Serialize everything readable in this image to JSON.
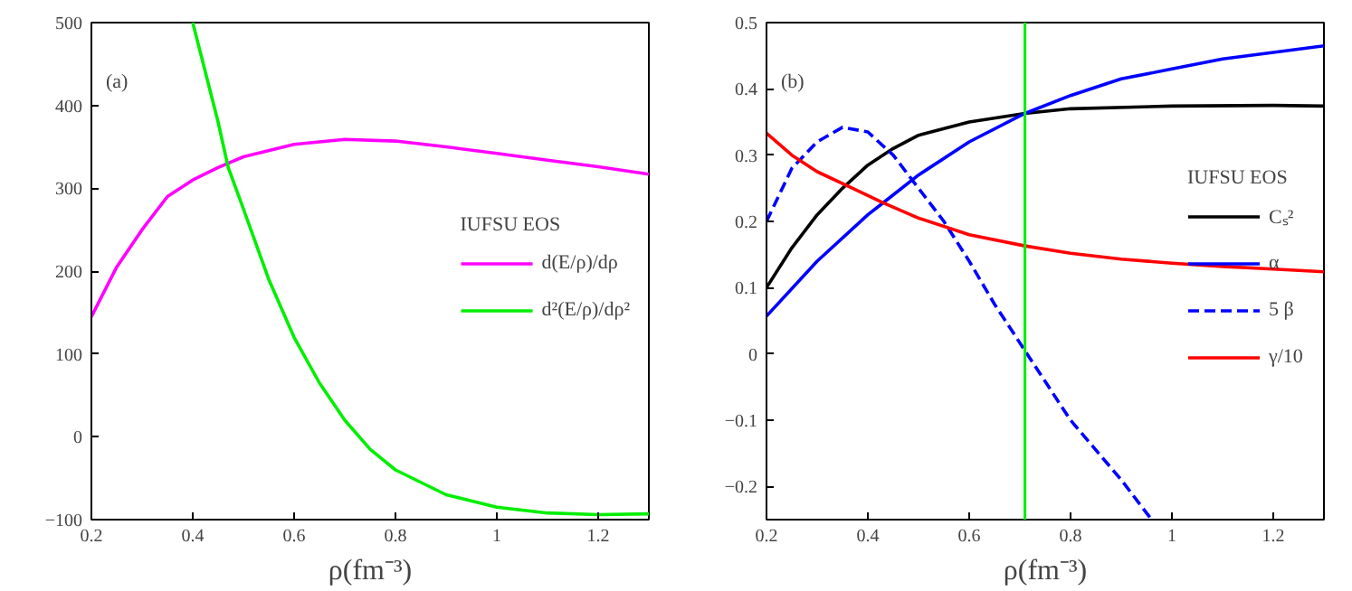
{
  "chart_data": [
    {
      "type": "line",
      "xlabel": "ρ(fm⁻³)",
      "legend_title": "IUFSU EOS",
      "annotations": [
        "(a)"
      ],
      "legend": "right",
      "grid": false,
      "xlim": [
        0.2,
        1.3
      ],
      "xticks": [
        0.2,
        0.4,
        0.6,
        0.8,
        1,
        1.2
      ],
      "ylim": [
        -100,
        500
      ],
      "yticks": [
        -100,
        0,
        100,
        200,
        300,
        400,
        500
      ],
      "series": [
        {
          "name": "d(E/ρ)/dρ",
          "color": "#ff00ff",
          "x": [
            0.2,
            0.25,
            0.3,
            0.35,
            0.4,
            0.45,
            0.5,
            0.6,
            0.7,
            0.8,
            0.9,
            1.0,
            1.1,
            1.2,
            1.3
          ],
          "values": [
            145,
            205,
            250,
            290,
            310,
            325,
            338,
            353,
            359,
            357,
            350,
            342,
            334,
            326,
            317
          ]
        },
        {
          "name": "d²(E/ρ)/dρ²",
          "color": "#00ee00",
          "x": [
            0.4,
            0.45,
            0.47,
            0.5,
            0.55,
            0.6,
            0.65,
            0.7,
            0.75,
            0.8,
            0.9,
            1.0,
            1.1,
            1.2,
            1.3
          ],
          "values": [
            500,
            380,
            325,
            275,
            190,
            120,
            65,
            20,
            -15,
            -40,
            -70,
            -85,
            -92,
            -94,
            -93
          ]
        }
      ]
    },
    {
      "type": "line",
      "xlabel": "ρ(fm⁻³)",
      "legend_title": "IUFSU EOS",
      "annotations": [
        "(b)"
      ],
      "legend": "right",
      "grid": false,
      "xlim": [
        0.2,
        1.3
      ],
      "xticks": [
        0.2,
        0.4,
        0.6,
        0.8,
        1,
        1.2
      ],
      "ylim": [
        -0.25,
        0.5
      ],
      "yticks": [
        -0.2,
        -0.1,
        0,
        0.1,
        0.2,
        0.3,
        0.4,
        0.5
      ],
      "ref_lines": [
        {
          "axis": "x",
          "value": 0.71,
          "color": "#00ee00"
        }
      ],
      "series": [
        {
          "name": "Cₛ²",
          "color": "#000000",
          "x": [
            0.2,
            0.25,
            0.3,
            0.35,
            0.4,
            0.45,
            0.5,
            0.6,
            0.71,
            0.8,
            1.0,
            1.2,
            1.3
          ],
          "values": [
            0.1,
            0.16,
            0.21,
            0.25,
            0.285,
            0.31,
            0.33,
            0.35,
            0.363,
            0.37,
            0.374,
            0.375,
            0.374
          ]
        },
        {
          "name": "α",
          "color": "#0000ff",
          "x": [
            0.2,
            0.3,
            0.4,
            0.43,
            0.5,
            0.6,
            0.71,
            0.8,
            0.9,
            1.0,
            1.1,
            1.2,
            1.3
          ],
          "values": [
            0.057,
            0.14,
            0.21,
            0.228,
            0.27,
            0.32,
            0.363,
            0.39,
            0.415,
            0.43,
            0.445,
            0.455,
            0.465
          ]
        },
        {
          "name": "5 β",
          "color": "#0000ff",
          "line_style": "dashed",
          "x": [
            0.2,
            0.25,
            0.3,
            0.35,
            0.4,
            0.45,
            0.5,
            0.55,
            0.6,
            0.65,
            0.71,
            0.8,
            0.9,
            0.96
          ],
          "values": [
            0.2,
            0.28,
            0.32,
            0.342,
            0.335,
            0.3,
            0.25,
            0.2,
            0.14,
            0.075,
            0.005,
            -0.1,
            -0.19,
            -0.25
          ]
        },
        {
          "name": "γ/10",
          "color": "#ff0000",
          "x": [
            0.2,
            0.25,
            0.3,
            0.37,
            0.43,
            0.5,
            0.6,
            0.71,
            0.8,
            0.9,
            1.0,
            1.1,
            1.2,
            1.3
          ],
          "values": [
            0.333,
            0.3,
            0.275,
            0.25,
            0.228,
            0.205,
            0.18,
            0.163,
            0.152,
            0.143,
            0.137,
            0.132,
            0.128,
            0.124
          ]
        }
      ]
    }
  ]
}
